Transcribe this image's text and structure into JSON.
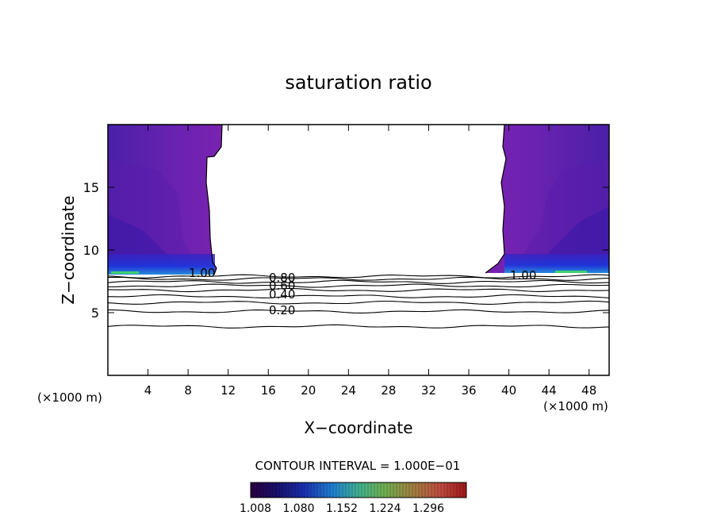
{
  "chart_data": {
    "type": "contour",
    "title": "saturation ratio",
    "xlabel": "X−coordinate",
    "ylabel": "Z−coordinate",
    "x_unit_left": "(×1000 m)",
    "x_unit_right": "(×1000 m)",
    "xlim": [
      0,
      50
    ],
    "ylim": [
      0,
      20
    ],
    "x_ticks": [
      4,
      8,
      12,
      16,
      20,
      24,
      28,
      32,
      36,
      40,
      44,
      48
    ],
    "y_ticks": [
      5,
      10,
      15
    ],
    "contour_interval_text": "CONTOUR INTERVAL = 1.000E−01",
    "colorbar": {
      "ticks": [
        "1.008",
        "1.080",
        "1.152",
        "1.224",
        "1.296"
      ],
      "colors": [
        "#3a004a",
        "#1a1a9a",
        "#2050e0",
        "#20b0d0",
        "#30c060",
        "#a0c040",
        "#c06040",
        "#c02020"
      ]
    },
    "line_labels": [
      "0.80",
      "0.60",
      "0.40",
      "0.20",
      "1.00",
      "1.00"
    ],
    "colors": {
      "supersat_fill": "#7a22b0",
      "supersat_dark": "#4a14a0",
      "supersat_blue": "#1838e0"
    },
    "contours": [
      {
        "level": 0.1,
        "z": 3.9
      },
      {
        "level": 0.2,
        "z": 5.1
      },
      {
        "level": 0.3,
        "z": 5.8
      },
      {
        "level": 0.4,
        "z": 6.3
      },
      {
        "level": 0.5,
        "z": 6.8
      },
      {
        "level": 0.6,
        "z": 7.15
      },
      {
        "level": 0.7,
        "z": 7.45
      },
      {
        "level": 0.8,
        "z": 7.7
      },
      {
        "level": 0.9,
        "z": 7.9
      }
    ],
    "supersaturated_regions": [
      {
        "name": "left",
        "x_range": [
          0,
          11
        ],
        "z_range": [
          8.1,
          20
        ]
      },
      {
        "name": "right",
        "x_range": [
          38,
          50
        ],
        "z_range": [
          8.1,
          20
        ]
      }
    ]
  }
}
